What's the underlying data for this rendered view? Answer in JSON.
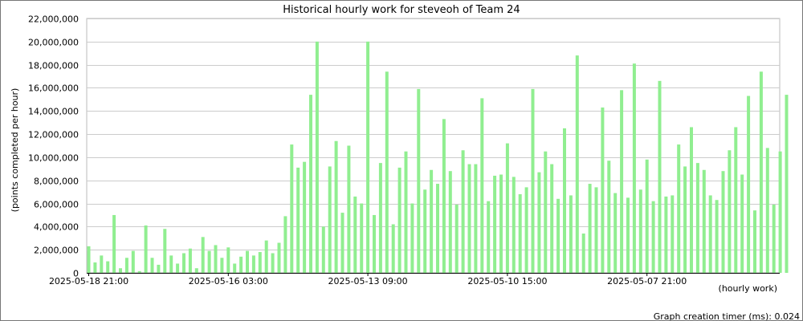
{
  "chart_data": {
    "type": "bar",
    "title": "Historical hourly work for steveoh of Team 24",
    "ylabel": "(points completed per hour)",
    "xlabel": "(hourly work)",
    "ylim": [
      0,
      22000000
    ],
    "y_ticks": [
      "0",
      "2,000,000",
      "4,000,000",
      "6,000,000",
      "8,000,000",
      "10,000,000",
      "12,000,000",
      "14,000,000",
      "16,000,000",
      "18,000,000",
      "20,000,000",
      "22,000,000"
    ],
    "x_tick_labels": [
      "2025-05-18 21:00",
      "2025-05-16 03:00",
      "2025-05-13 09:00",
      "2025-05-10 15:00",
      "2025-05-07 21:00"
    ],
    "x_tick_bar_index": [
      0,
      22,
      44,
      66,
      88
    ],
    "grid": true,
    "bar_color": "#90ee90",
    "values": [
      2300000,
      900000,
      1500000,
      1000000,
      5000000,
      400000,
      1300000,
      1900000,
      150000,
      4100000,
      1300000,
      700000,
      3800000,
      1500000,
      800000,
      1700000,
      2100000,
      400000,
      3100000,
      1900000,
      2400000,
      1300000,
      2200000,
      800000,
      1400000,
      1900000,
      1500000,
      1800000,
      2800000,
      1700000,
      2600000,
      4900000,
      11100000,
      9100000,
      9600000,
      15400000,
      20000000,
      4000000,
      9200000,
      11400000,
      5200000,
      11000000,
      6600000,
      6000000,
      20000000,
      5000000,
      9500000,
      17400000,
      4200000,
      9100000,
      10500000,
      6000000,
      15900000,
      7200000,
      8900000,
      7700000,
      13300000,
      8800000,
      5900000,
      10600000,
      9400000,
      9400000,
      15100000,
      6200000,
      8400000,
      8500000,
      11200000,
      8300000,
      6800000,
      7400000,
      15900000,
      8700000,
      10500000,
      9400000,
      6400000,
      12500000,
      6700000,
      18800000,
      3400000,
      7700000,
      7400000,
      14300000,
      9700000,
      6900000,
      15800000,
      6500000,
      18100000,
      7200000,
      9800000,
      6200000,
      16600000,
      6600000,
      6700000,
      11100000,
      9200000,
      12600000,
      9500000,
      8900000,
      6700000,
      6300000,
      8800000,
      10600000,
      12600000,
      8500000,
      15300000,
      5400000,
      17400000,
      10800000,
      5900000,
      10500000,
      15400000
    ]
  },
  "footer": {
    "timer_label": "Graph creation timer (ms): 0.024"
  }
}
